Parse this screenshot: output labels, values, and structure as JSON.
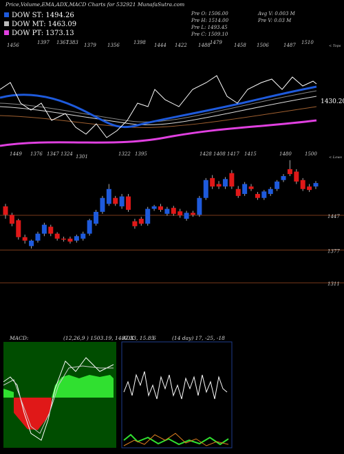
{
  "header": {
    "title": "Price,Volume,EMA,ADX,MACD Charts for 532921 MunafaSutra.com"
  },
  "legend": [
    {
      "label": "DOW ST: 1494.26",
      "color": "#1e5adc"
    },
    {
      "label": "DOW MT: 1463.09",
      "color": "#bbbbbb"
    },
    {
      "label": "DOW PT: 1373.13",
      "color": "#e040e0"
    }
  ],
  "info": [
    "Pre  O: 1506.00",
    "Pre  H: 1514.00",
    "Pre  L: 1493.45",
    "Pre  C: 1509.10",
    "Avg  V: 0.003 M",
    "Pre  V: 0.03 M"
  ],
  "tops": [
    1456,
    1397,
    1367,
    1383,
    1379,
    1356,
    1398,
    1444,
    1422,
    1488,
    1479,
    1458,
    1506,
    1487,
    1510
  ],
  "tops_label": "< Tops",
  "last_label": "1430.20",
  "lows": [
    1449,
    1376,
    1347,
    1324,
    1301,
    1322,
    1395,
    1428,
    1408,
    1417,
    1415,
    1480,
    1500
  ],
  "lows_label": "< Lows",
  "chart_data": {
    "type": "candlestick",
    "ylim": [
      1271,
      1562
    ],
    "yticks": [
      1311,
      1377,
      1447
    ],
    "up_color": "#1e5adc",
    "down_color": "#e01818",
    "candles": [
      [
        1465,
        1470,
        1440,
        1448
      ],
      [
        1448,
        1452,
        1425,
        1430
      ],
      [
        1437,
        1440,
        1398,
        1403
      ],
      [
        1403,
        1408,
        1390,
        1396
      ],
      [
        1385,
        1398,
        1380,
        1396
      ],
      [
        1396,
        1414,
        1392,
        1410
      ],
      [
        1410,
        1432,
        1405,
        1428
      ],
      [
        1424,
        1428,
        1405,
        1410
      ],
      [
        1410,
        1413,
        1396,
        1400
      ],
      [
        1400,
        1404,
        1394,
        1398
      ],
      [
        1400,
        1404,
        1390,
        1394
      ],
      [
        1396,
        1408,
        1392,
        1405
      ],
      [
        1400,
        1414,
        1396,
        1410
      ],
      [
        1410,
        1440,
        1406,
        1437
      ],
      [
        1430,
        1458,
        1426,
        1454
      ],
      [
        1454,
        1486,
        1450,
        1482
      ],
      [
        1470,
        1510,
        1466,
        1500
      ],
      [
        1482,
        1486,
        1466,
        1470
      ],
      [
        1465,
        1490,
        1460,
        1485
      ],
      [
        1485,
        1490,
        1454,
        1458
      ],
      [
        1435,
        1440,
        1420,
        1425
      ],
      [
        1440,
        1444,
        1426,
        1430
      ],
      [
        1430,
        1464,
        1426,
        1460
      ],
      [
        1460,
        1468,
        1456,
        1465
      ],
      [
        1465,
        1470,
        1454,
        1458
      ],
      [
        1450,
        1464,
        1446,
        1460
      ],
      [
        1462,
        1466,
        1446,
        1450
      ],
      [
        1455,
        1460,
        1442,
        1447
      ],
      [
        1440,
        1456,
        1436,
        1452
      ],
      [
        1452,
        1456,
        1444,
        1448
      ],
      [
        1448,
        1486,
        1444,
        1482
      ],
      [
        1482,
        1522,
        1478,
        1518
      ],
      [
        1522,
        1528,
        1500,
        1505
      ],
      [
        1510,
        1516,
        1500,
        1505
      ],
      [
        1505,
        1524,
        1500,
        1520
      ],
      [
        1532,
        1538,
        1500,
        1505
      ],
      [
        1500,
        1506,
        1482,
        1486
      ],
      [
        1490,
        1514,
        1486,
        1510
      ],
      [
        1505,
        1510,
        1496,
        1500
      ],
      [
        1490,
        1494,
        1478,
        1482
      ],
      [
        1482,
        1498,
        1478,
        1495
      ],
      [
        1490,
        1504,
        1486,
        1500
      ],
      [
        1500,
        1518,
        1496,
        1515
      ],
      [
        1518,
        1530,
        1514,
        1526
      ],
      [
        1540,
        1558,
        1526,
        1530
      ],
      [
        1535,
        1540,
        1510,
        1515
      ],
      [
        1518,
        1522,
        1496,
        1500
      ],
      [
        1505,
        1510,
        1494,
        1498
      ],
      [
        1505,
        1516,
        1500,
        1512
      ]
    ]
  },
  "macd": {
    "label": "MACD:",
    "text": "(12,26,9 ) 1503.19, 1487.33, 15.85"
  },
  "adx": {
    "label": "ADX",
    "value": 6,
    "text": "(14 day) 17, -25, -18"
  }
}
